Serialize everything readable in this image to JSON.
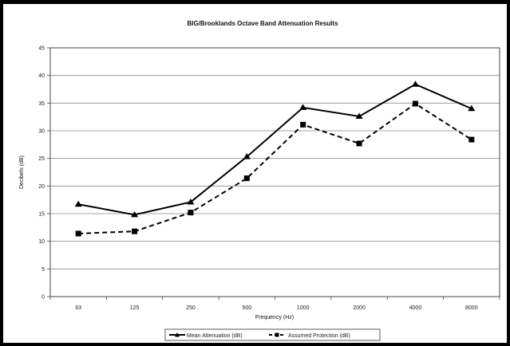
{
  "chart_data": {
    "type": "line",
    "title": "BIG/Brooklands Octave Band Attenuation Results",
    "xlabel": "Frequency (Hz)",
    "ylabel": "Decibels (dB)",
    "categories": [
      "63",
      "125",
      "250",
      "500",
      "1000",
      "2000",
      "4000",
      "8000"
    ],
    "ylim": [
      0,
      45
    ],
    "yticks": [
      0,
      5,
      10,
      15,
      20,
      25,
      30,
      35,
      40,
      45
    ],
    "grid": true,
    "legend_position": "bottom",
    "series": [
      {
        "name": "Mean Attenuation (dB)",
        "values": [
          16.7,
          14.8,
          17.1,
          25.3,
          34.2,
          32.6,
          38.4,
          34.0
        ],
        "line_style": "solid",
        "marker": "triangle",
        "color": "#000000"
      },
      {
        "name": "Assumed Protection (dB)",
        "values": [
          11.4,
          11.8,
          15.2,
          21.4,
          31.1,
          27.7,
          34.9,
          28.4
        ],
        "line_style": "dashed",
        "marker": "square",
        "color": "#000000"
      }
    ]
  }
}
